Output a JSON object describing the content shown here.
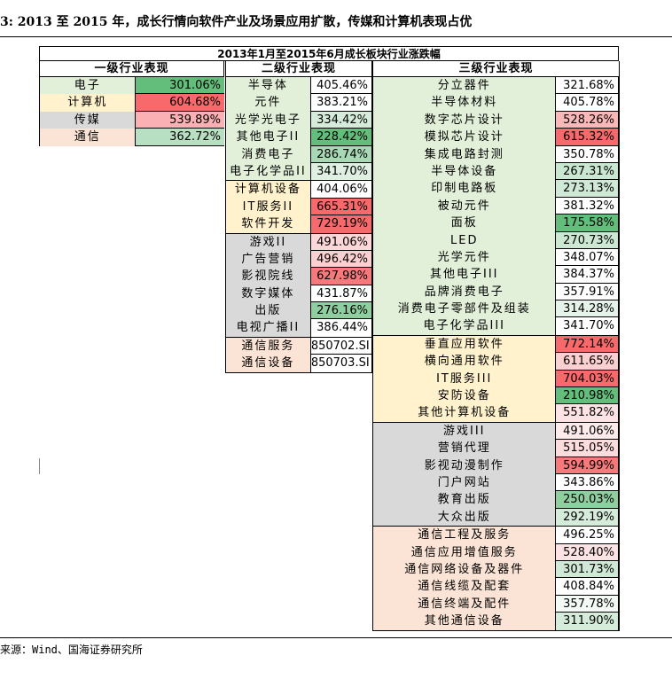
{
  "caption": "3: 2013 至 2015 年，成长行情向软件产业及场景应用扩散，传媒和计算机表现占优",
  "source": "来源：Wind、国海证券研究所",
  "colors": {
    "electronics_bg": "#e2efd9",
    "computer_bg": "#fff2cc",
    "media_bg": "#d9d9d9",
    "telecom_bg": "#fbe4d5",
    "scale_low": "#63be7b",
    "scale_mid": "#ffffff",
    "scale_high": "#f8696b"
  },
  "table": {
    "title": "2013年1月至2015年6月成长板块行业涨跌幅",
    "headers": {
      "level1": "一级行业表现",
      "level2": "二级行业表现",
      "level3": "三级行业表现"
    },
    "level1": [
      {
        "name": "电子",
        "value": "301.06%",
        "group": "elec",
        "bg": "#63be7b"
      },
      {
        "name": "计算机",
        "value": "604.68%",
        "group": "comp",
        "bg": "#f8696b"
      },
      {
        "name": "传媒",
        "value": "539.89%",
        "group": "media",
        "bg": "#fbb1b3"
      },
      {
        "name": "通信",
        "value": "362.72%",
        "group": "tele",
        "bg": "#b7dfc2"
      }
    ],
    "level2": [
      {
        "group": "elec",
        "rows": [
          {
            "name": "半导体",
            "value": "405.46%",
            "bg": "#ffffff"
          },
          {
            "name": "元件",
            "value": "383.21%",
            "bg": "#ffffff"
          },
          {
            "name": "光学光电子",
            "value": "334.42%",
            "bg": "#d6ecdb"
          },
          {
            "name": "其他电子II",
            "value": "228.42%",
            "bg": "#63be7b"
          },
          {
            "name": "消费电子",
            "value": "286.74%",
            "bg": "#a8d8b4"
          },
          {
            "name": "电子化学品II",
            "value": "341.70%",
            "bg": "#dff0e3"
          }
        ]
      },
      {
        "group": "comp",
        "rows": [
          {
            "name": "计算机设备",
            "value": "404.06%",
            "bg": "#ffffff"
          },
          {
            "name": "IT服务II",
            "value": "665.31%",
            "bg": "#f8696b"
          },
          {
            "name": "软件开发",
            "value": "729.19%",
            "bg": "#f8696b"
          }
        ]
      },
      {
        "group": "media",
        "rows": [
          {
            "name": "游戏II",
            "value": "491.06%",
            "bg": "#fdd6d7"
          },
          {
            "name": "广告营销",
            "value": "496.42%",
            "bg": "#fcd0d1"
          },
          {
            "name": "影视院线",
            "value": "627.98%",
            "bg": "#f8797b"
          },
          {
            "name": "数字媒体",
            "value": "431.87%",
            "bg": "#ffffff"
          },
          {
            "name": "出版",
            "value": "276.16%",
            "bg": "#8fce9f"
          },
          {
            "name": "电视广播II",
            "value": "386.44%",
            "bg": "#ffffff"
          }
        ]
      },
      {
        "group": "tele",
        "rows": [
          {
            "name": "通信服务",
            "value": "850702.SI",
            "bg": "#ffffff"
          },
          {
            "name": "通信设备",
            "value": "850703.SI",
            "bg": "#ffffff"
          }
        ]
      }
    ],
    "level3": [
      {
        "group": "elec",
        "rows": [
          {
            "name": "分立器件",
            "value": "321.68%",
            "bg": "#ffffff"
          },
          {
            "name": "半导体材料",
            "value": "405.78%",
            "bg": "#ffffff"
          },
          {
            "name": "数字芯片设计",
            "value": "528.26%",
            "bg": "#fbb8b9"
          },
          {
            "name": "模拟芯片设计",
            "value": "615.32%",
            "bg": "#f8696b"
          },
          {
            "name": "集成电路封测",
            "value": "350.78%",
            "bg": "#ffffff"
          },
          {
            "name": "半导体设备",
            "value": "267.31%",
            "bg": "#c9e7d1"
          },
          {
            "name": "印制电路板",
            "value": "273.13%",
            "bg": "#cfe9d6"
          },
          {
            "name": "被动元件",
            "value": "381.32%",
            "bg": "#ffffff"
          },
          {
            "name": "面板",
            "value": "175.58%",
            "bg": "#63be7b"
          },
          {
            "name": "LED",
            "value": "270.73%",
            "bg": "#cce8d3"
          },
          {
            "name": "光学元件",
            "value": "348.07%",
            "bg": "#ffffff"
          },
          {
            "name": "其他电子III",
            "value": "384.37%",
            "bg": "#ffffff"
          },
          {
            "name": "品牌消费电子",
            "value": "357.91%",
            "bg": "#ffffff"
          },
          {
            "name": "消费电子零部件及组装",
            "value": "314.28%",
            "bg": "#e6f3ea"
          },
          {
            "name": "电子化学品III",
            "value": "341.70%",
            "bg": "#ffffff"
          }
        ]
      },
      {
        "group": "comp",
        "rows": [
          {
            "name": "垂直应用软件",
            "value": "772.14%",
            "bg": "#f8696b"
          },
          {
            "name": "横向通用软件",
            "value": "611.65%",
            "bg": "#fcd0d1"
          },
          {
            "name": "IT服务III",
            "value": "704.03%",
            "bg": "#f8696b"
          },
          {
            "name": "安防设备",
            "value": "210.98%",
            "bg": "#63be7b"
          },
          {
            "name": "其他计算机设备",
            "value": "551.82%",
            "bg": "#fde3e4"
          }
        ]
      },
      {
        "group": "media",
        "rows": [
          {
            "name": "游戏III",
            "value": "491.06%",
            "bg": "#fdeaea"
          },
          {
            "name": "营销代理",
            "value": "515.05%",
            "bg": "#fcdcdd"
          },
          {
            "name": "影视动漫制作",
            "value": "594.99%",
            "bg": "#f8797b"
          },
          {
            "name": "门户网站",
            "value": "343.86%",
            "bg": "#ffffff"
          },
          {
            "name": "教育出版",
            "value": "250.03%",
            "bg": "#8fce9f"
          },
          {
            "name": "大众出版",
            "value": "292.19%",
            "bg": "#d6ecdb"
          }
        ]
      },
      {
        "group": "tele",
        "rows": [
          {
            "name": "通信工程及服务",
            "value": "496.25%",
            "bg": "#ffffff"
          },
          {
            "name": "通信应用增值服务",
            "value": "528.40%",
            "bg": "#fde3e4"
          },
          {
            "name": "通信网络设备及器件",
            "value": "301.73%",
            "bg": "#cfe9d6"
          },
          {
            "name": "通信线缆及配套",
            "value": "408.84%",
            "bg": "#ffffff"
          },
          {
            "name": "通信终端及配件",
            "value": "357.78%",
            "bg": "#f4faf5"
          },
          {
            "name": "其他通信设备",
            "value": "311.90%",
            "bg": "#d6ecdb"
          }
        ]
      }
    ]
  }
}
